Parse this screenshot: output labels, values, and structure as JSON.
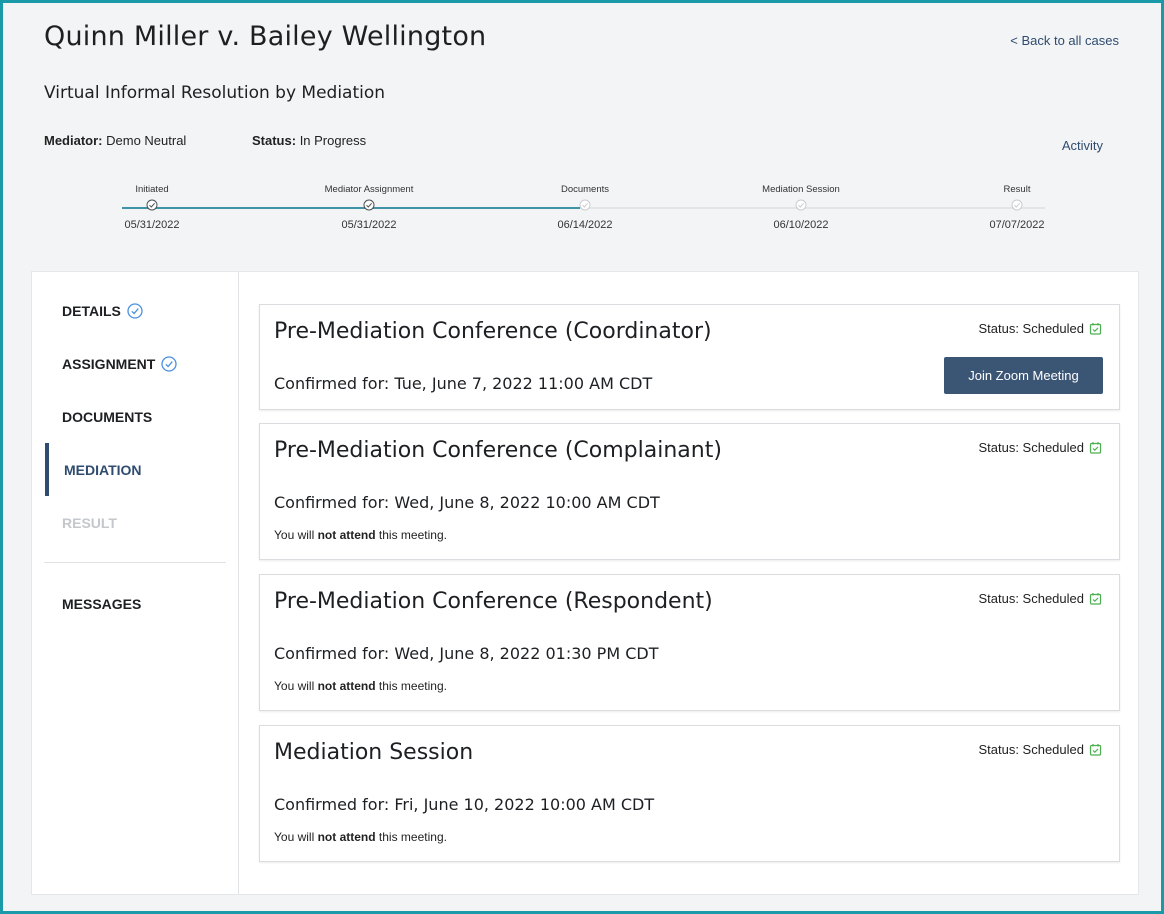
{
  "header": {
    "case_title": "Quinn Miller v. Bailey Wellington",
    "back_link": "< Back to all cases",
    "subtitle": "Virtual Informal Resolution by Mediation",
    "mediator_label": "Mediator:",
    "mediator_value": "Demo Neutral",
    "status_label": "Status:",
    "status_value": "In Progress",
    "activity_link": "Activity"
  },
  "tracker": {
    "progress_fraction": 0.5,
    "steps": [
      {
        "label": "Initiated",
        "date": "05/31/2022",
        "complete": true
      },
      {
        "label": "Mediator Assignment",
        "date": "05/31/2022",
        "complete": true
      },
      {
        "label": "Documents",
        "date": "06/14/2022",
        "complete": false
      },
      {
        "label": "Mediation Session",
        "date": "06/10/2022",
        "complete": false
      },
      {
        "label": "Result",
        "date": "07/07/2022",
        "complete": false
      }
    ]
  },
  "sidebar": {
    "items": [
      {
        "label": "DETAILS",
        "state": "complete"
      },
      {
        "label": "ASSIGNMENT",
        "state": "complete"
      },
      {
        "label": "DOCUMENTS",
        "state": "normal"
      },
      {
        "label": "MEDIATION",
        "state": "active"
      },
      {
        "label": "RESULT",
        "state": "disabled"
      }
    ],
    "messages_label": "MESSAGES"
  },
  "sessions": [
    {
      "title": "Pre-Mediation Conference (Coordinator)",
      "confirmed": "Confirmed for: Tue, June 7, 2022 11:00 AM CDT",
      "status": "Status: Scheduled",
      "button": "Join Zoom Meeting"
    },
    {
      "title": "Pre-Mediation Conference (Complainant)",
      "confirmed": "Confirmed for: Wed, June 8, 2022 10:00 AM CDT",
      "status": "Status: Scheduled",
      "note_prefix": "You will ",
      "note_bold": "not attend",
      "note_suffix": " this meeting."
    },
    {
      "title": "Pre-Mediation Conference (Respondent)",
      "confirmed": "Confirmed for: Wed, June 8, 2022 01:30 PM CDT",
      "status": "Status: Scheduled",
      "note_prefix": "You will ",
      "note_bold": "not attend",
      "note_suffix": " this meeting."
    },
    {
      "title": "Mediation Session",
      "confirmed": "Confirmed for: Fri, June 10, 2022 10:00 AM CDT",
      "status": "Status: Scheduled",
      "note_prefix": "You will ",
      "note_bold": "not attend",
      "note_suffix": " this meeting."
    }
  ],
  "colors": {
    "accent_teal": "#3f93a5",
    "navy": "#2f4c70",
    "button": "#3b5575",
    "scheduled_green": "#4caf50",
    "check_blue": "#4a90e2",
    "pending_gray": "#c9ccd0"
  }
}
